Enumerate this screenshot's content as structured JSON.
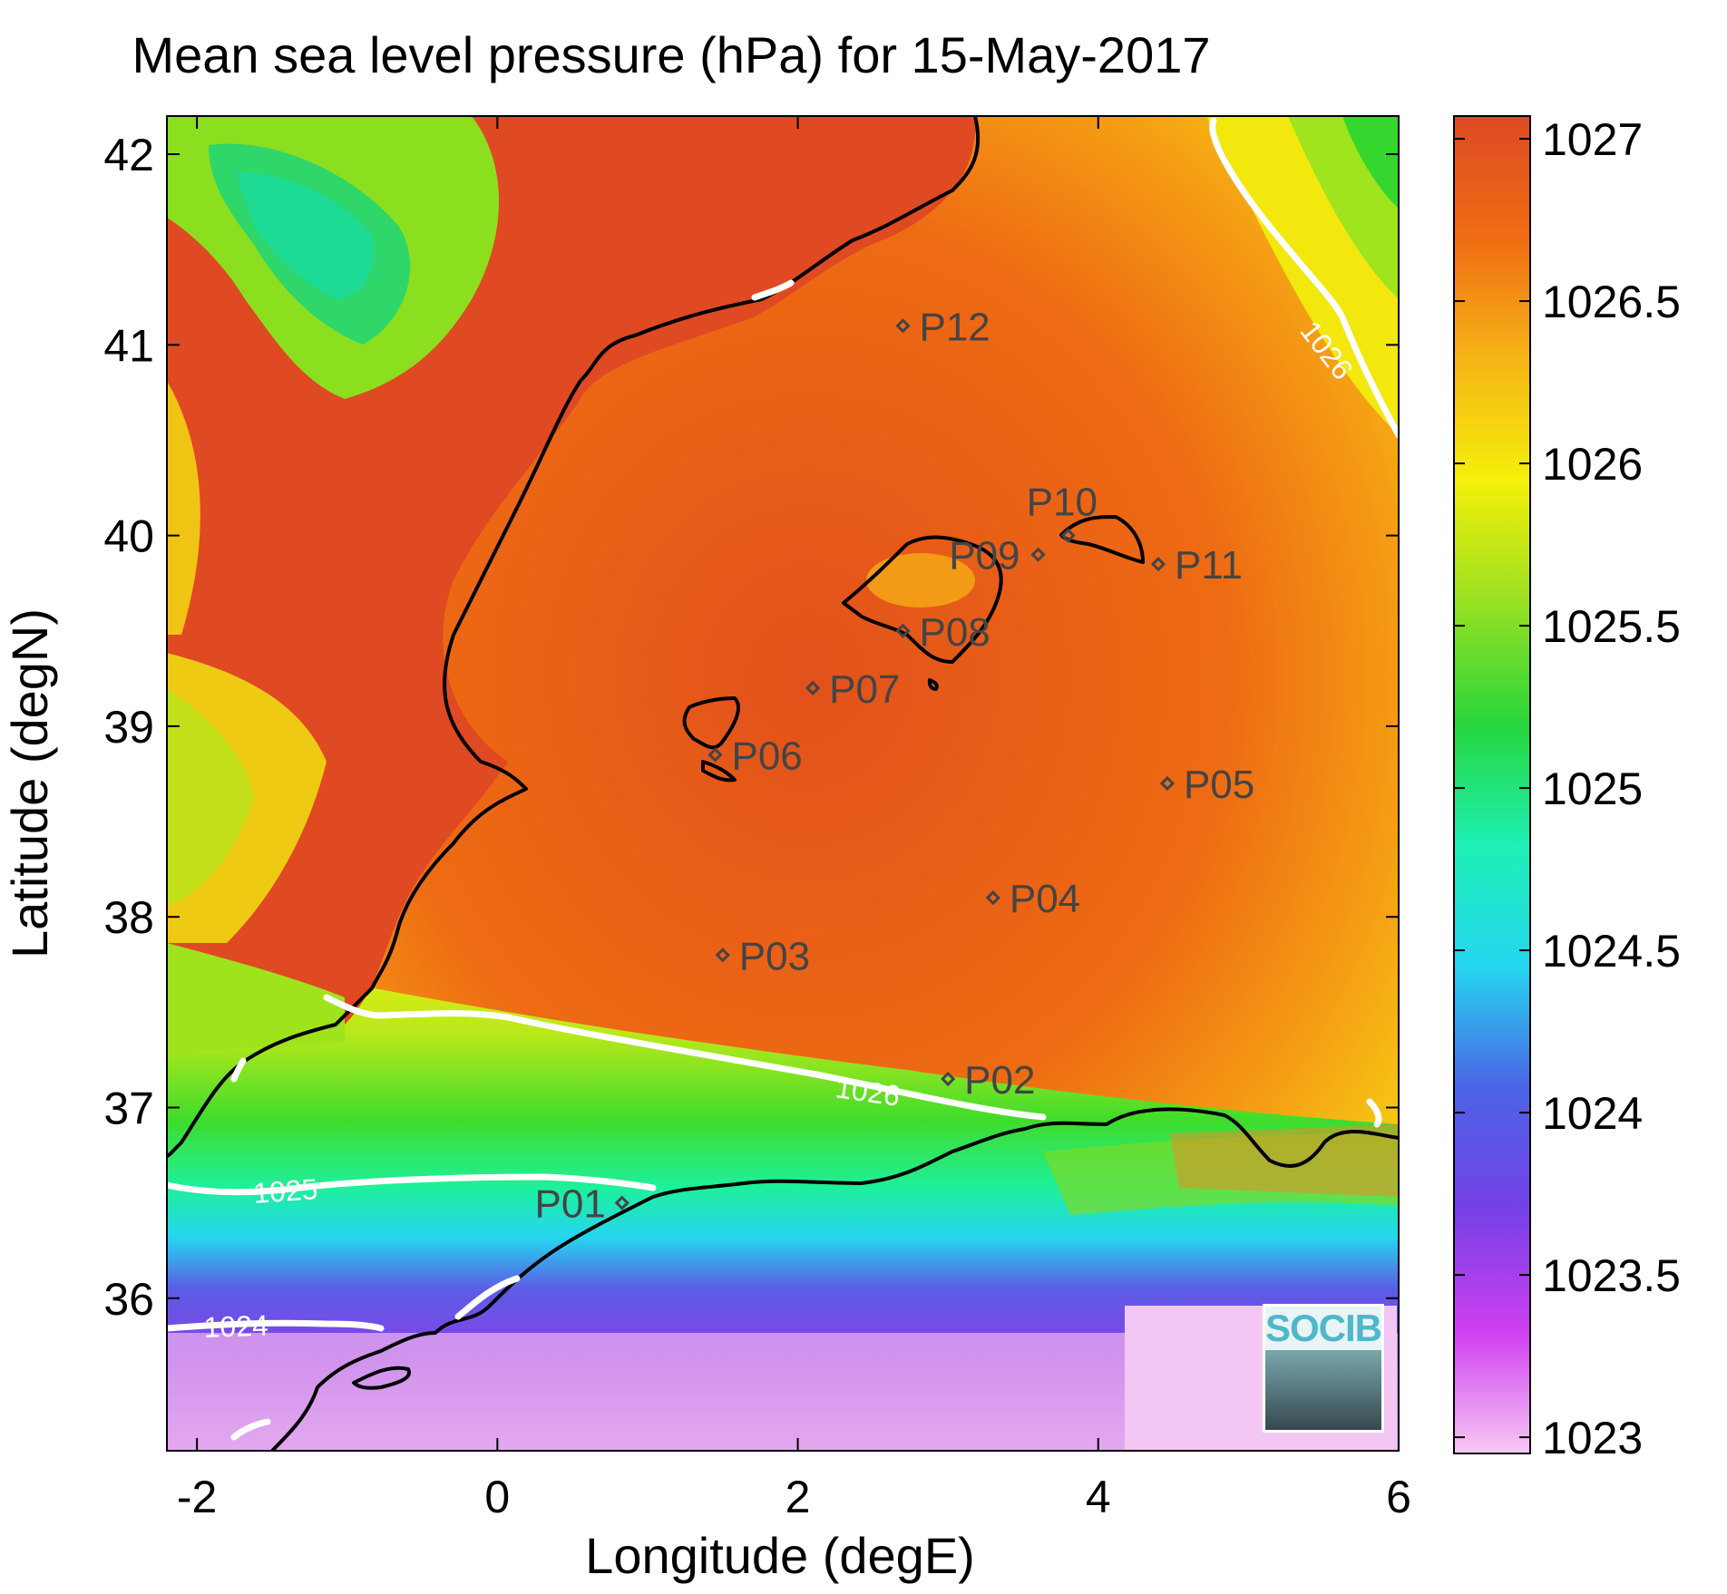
{
  "title": "Mean sea level pressure (hPa) for 15-May-2017",
  "x_axis": {
    "label": "Longitude (degE)",
    "ticks": [
      "-2",
      "0",
      "2",
      "4",
      "6"
    ]
  },
  "y_axis": {
    "label": "Latitude (degN)",
    "ticks": [
      "42",
      "41",
      "40",
      "39",
      "38",
      "37",
      "36"
    ]
  },
  "colorbar": {
    "ticks": [
      "1027",
      "1026.5",
      "1026",
      "1025.5",
      "1025",
      "1024.5",
      "1024",
      "1023.5",
      "1023"
    ],
    "colors": [
      "#f7c9f5",
      "#cf3ff0",
      "#7640e6",
      "#4b63e6",
      "#25d6f0",
      "#1ef0b5",
      "#27d63c",
      "#98e022",
      "#f5f00a",
      "#f6b516",
      "#f06c13",
      "#dc4a23"
    ]
  },
  "contour_labels": [
    "1026",
    "1026",
    "1025",
    "1024"
  ],
  "stations": [
    {
      "id": "P01",
      "lon": 0.83,
      "lat": 36.5
    },
    {
      "id": "P02",
      "lon": 3.0,
      "lat": 37.15
    },
    {
      "id": "P03",
      "lon": 1.5,
      "lat": 37.8
    },
    {
      "id": "P04",
      "lon": 3.3,
      "lat": 38.1
    },
    {
      "id": "P05",
      "lon": 4.46,
      "lat": 38.7
    },
    {
      "id": "P06",
      "lon": 1.45,
      "lat": 38.85
    },
    {
      "id": "P07",
      "lon": 2.1,
      "lat": 39.2
    },
    {
      "id": "P08",
      "lon": 2.7,
      "lat": 39.5
    },
    {
      "id": "P09",
      "lon": 3.6,
      "lat": 39.9
    },
    {
      "id": "P10",
      "lon": 3.8,
      "lat": 40.0
    },
    {
      "id": "P11",
      "lon": 4.4,
      "lat": 39.85
    },
    {
      "id": "P12",
      "lon": 2.7,
      "lat": 41.1
    }
  ],
  "logo": {
    "text": "SOCIB"
  }
}
